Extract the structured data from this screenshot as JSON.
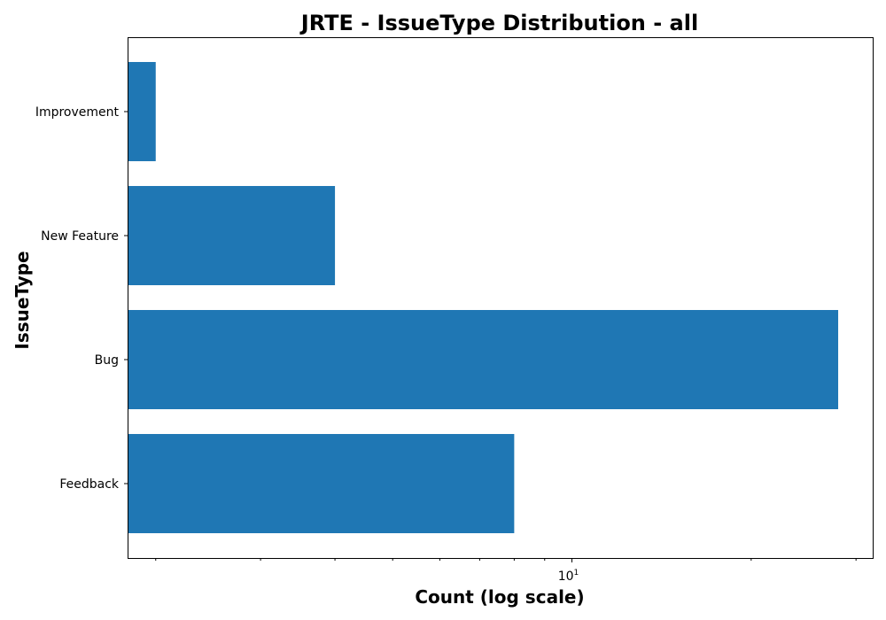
{
  "chart_data": {
    "type": "bar",
    "orientation": "horizontal",
    "title": "JRTE - IssueType Distribution - all",
    "xlabel": "Count (log scale)",
    "ylabel": "IssueType",
    "x_scale": "log",
    "xlim": [
      1.8,
      32
    ],
    "categories": [
      "Feedback",
      "Bug",
      "New Feature",
      "Improvement"
    ],
    "values": [
      8,
      28,
      4,
      2
    ],
    "bar_color": "#1f77b4",
    "x_major_ticks": [
      {
        "value": 10,
        "base": "10",
        "exponent": "1"
      }
    ],
    "x_minor_ticks": [
      2,
      3,
      4,
      5,
      6,
      7,
      8,
      9,
      20,
      30
    ],
    "grid": false,
    "legend": "none"
  }
}
